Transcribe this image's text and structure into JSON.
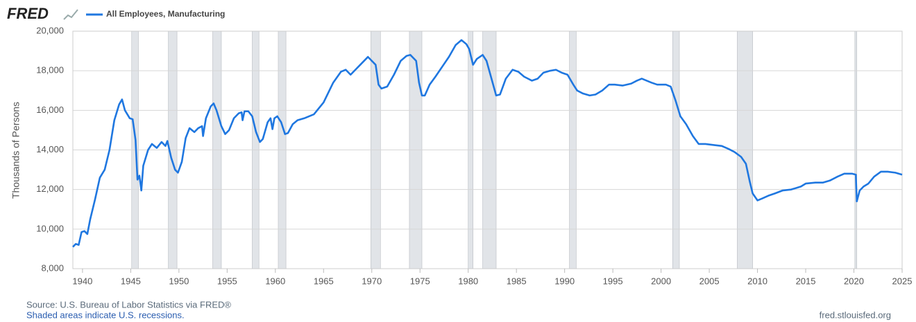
{
  "logo": "FRED",
  "source": "Source: U.S. Bureau of Labor Statistics via FRED®",
  "note": "Shaded areas indicate U.S. recessions.",
  "url": "fred.stlouisfed.org",
  "chart_data": {
    "type": "line",
    "y_label": "Thousands of Persons",
    "xlim": [
      1939,
      2025
    ],
    "xticks": [
      1940,
      1945,
      1950,
      1955,
      1960,
      1965,
      1970,
      1975,
      1980,
      1985,
      1990,
      1995,
      2000,
      2005,
      2010,
      2015,
      2020,
      2025
    ],
    "ylim": [
      8000,
      20000
    ],
    "yticks": [
      {
        "value": 8000,
        "label": "8,000"
      },
      {
        "value": 10000,
        "label": "10,000"
      },
      {
        "value": 12000,
        "label": "12,000"
      },
      {
        "value": 14000,
        "label": "14,000"
      },
      {
        "value": 16000,
        "label": "16,000"
      },
      {
        "value": 18000,
        "label": "18,000"
      },
      {
        "value": 20000,
        "label": "20,000"
      }
    ],
    "grid": true,
    "recessions": [
      [
        1945.1,
        1945.8
      ],
      [
        1948.9,
        1949.8
      ],
      [
        1953.5,
        1954.4
      ],
      [
        1957.6,
        1958.3
      ],
      [
        1960.3,
        1961.1
      ],
      [
        1969.9,
        1970.9
      ],
      [
        1973.9,
        1975.2
      ],
      [
        1980.0,
        1980.5
      ],
      [
        1981.5,
        1982.9
      ],
      [
        1990.5,
        1991.2
      ],
      [
        2001.2,
        2001.9
      ],
      [
        2007.9,
        2009.5
      ],
      [
        2020.1,
        2020.3
      ]
    ],
    "x": [
      1939.0,
      1939.3,
      1939.6,
      1939.9,
      1940.2,
      1940.5,
      1940.8,
      1941.3,
      1941.8,
      1942.3,
      1942.8,
      1943.3,
      1943.8,
      1944.1,
      1944.4,
      1944.9,
      1945.2,
      1945.5,
      1945.7,
      1945.9,
      1946.1,
      1946.3,
      1946.8,
      1947.2,
      1947.7,
      1948.2,
      1948.6,
      1948.8,
      1949.2,
      1949.6,
      1949.9,
      1950.3,
      1950.7,
      1951.1,
      1951.6,
      1952.0,
      1952.4,
      1952.5,
      1952.8,
      1953.3,
      1953.6,
      1953.9,
      1954.4,
      1954.8,
      1955.2,
      1955.7,
      1956.2,
      1956.5,
      1956.6,
      1956.8,
      1957.2,
      1957.6,
      1958.0,
      1958.4,
      1958.7,
      1959.2,
      1959.5,
      1959.7,
      1959.9,
      1960.2,
      1960.6,
      1961.0,
      1961.3,
      1961.8,
      1962.3,
      1963.0,
      1964.0,
      1965.0,
      1966.0,
      1966.8,
      1967.3,
      1967.8,
      1968.3,
      1968.9,
      1969.6,
      1969.8,
      1970.4,
      1970.7,
      1971.0,
      1971.6,
      1972.3,
      1973.0,
      1973.6,
      1974.0,
      1974.6,
      1974.9,
      1975.2,
      1975.5,
      1976.0,
      1976.6,
      1977.3,
      1978.0,
      1978.7,
      1979.3,
      1979.8,
      1980.1,
      1980.5,
      1980.9,
      1981.5,
      1981.9,
      1982.3,
      1982.9,
      1983.3,
      1983.9,
      1984.6,
      1985.2,
      1985.8,
      1986.6,
      1987.2,
      1987.8,
      1988.5,
      1989.1,
      1989.7,
      1990.3,
      1990.9,
      1991.3,
      1991.9,
      1992.6,
      1993.2,
      1993.9,
      1994.6,
      1995.2,
      1996.0,
      1996.9,
      1997.5,
      1998.0,
      1998.5,
      1999.0,
      1999.6,
      2000.5,
      2001.0,
      2001.5,
      2002.0,
      2002.6,
      2003.3,
      2003.9,
      2004.6,
      2005.4,
      2006.3,
      2007.0,
      2007.6,
      2008.3,
      2008.8,
      2009.2,
      2009.5,
      2010.0,
      2010.5,
      2011.2,
      2011.8,
      2012.6,
      2013.5,
      2014.5,
      2015.0,
      2016.0,
      2016.8,
      2017.5,
      2018.3,
      2019.0,
      2019.8,
      2020.2,
      2020.3,
      2020.6,
      2021.0,
      2021.5,
      2022.1,
      2022.8,
      2023.5,
      2024.3,
      2025.0
    ],
    "series": [
      {
        "name": "All Employees, Manufacturing",
        "color": "#1f77e0",
        "values": [
          9100,
          9250,
          9200,
          9850,
          9900,
          9750,
          10500,
          11500,
          12600,
          13000,
          14000,
          15500,
          16300,
          16550,
          16000,
          15600,
          15550,
          14500,
          12500,
          12700,
          11950,
          13200,
          14000,
          14300,
          14100,
          14400,
          14200,
          14450,
          13600,
          13000,
          12850,
          13400,
          14600,
          15100,
          14900,
          15100,
          15200,
          14700,
          15600,
          16200,
          16350,
          16000,
          15200,
          14800,
          15000,
          15600,
          15850,
          15900,
          15500,
          15950,
          15950,
          15700,
          14900,
          14400,
          14550,
          15400,
          15600,
          15050,
          15600,
          15700,
          15400,
          14800,
          14850,
          15300,
          15500,
          15600,
          15800,
          16400,
          17400,
          17950,
          18050,
          17800,
          18050,
          18350,
          18700,
          18600,
          18300,
          17300,
          17100,
          17200,
          17800,
          18500,
          18750,
          18800,
          18500,
          17400,
          16750,
          16750,
          17300,
          17700,
          18200,
          18700,
          19300,
          19550,
          19350,
          19100,
          18300,
          18600,
          18800,
          18500,
          17800,
          16750,
          16800,
          17600,
          18050,
          17950,
          17700,
          17500,
          17600,
          17900,
          18000,
          18050,
          17900,
          17800,
          17300,
          17000,
          16850,
          16750,
          16800,
          17000,
          17300,
          17300,
          17250,
          17350,
          17500,
          17600,
          17500,
          17400,
          17300,
          17300,
          17200,
          16500,
          15700,
          15300,
          14700,
          14300,
          14300,
          14250,
          14200,
          14050,
          13900,
          13650,
          13300,
          12400,
          11800,
          11450,
          11550,
          11700,
          11800,
          11950,
          12000,
          12150,
          12300,
          12350,
          12350,
          12450,
          12650,
          12800,
          12800,
          12750,
          11400,
          11950,
          12150,
          12300,
          12650,
          12900,
          12900,
          12850,
          12750
        ]
      }
    ]
  }
}
